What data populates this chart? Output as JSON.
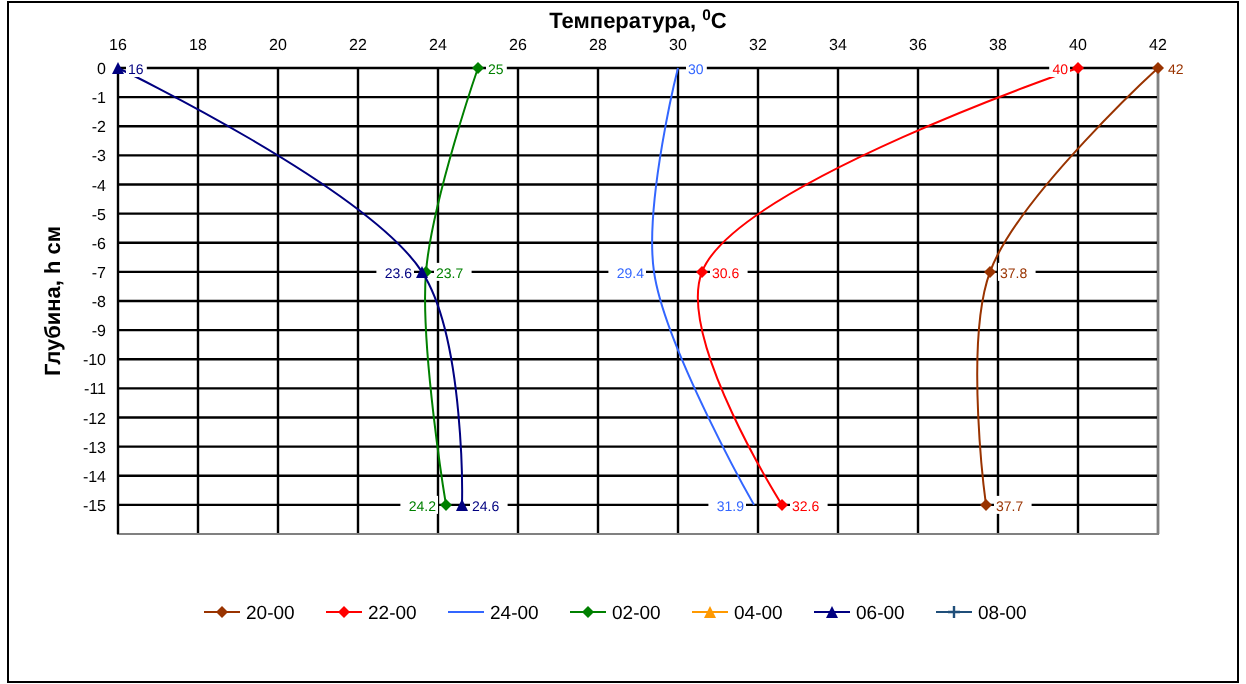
{
  "chart_data": {
    "type": "line",
    "orientation": "horizontal",
    "xlabel": "Температура, $^{0}$C",
    "ylabel": "Глубина, h см",
    "xlim": [
      16,
      42
    ],
    "xticks": [
      16,
      18,
      20,
      22,
      24,
      26,
      28,
      30,
      32,
      34,
      36,
      38,
      40,
      42
    ],
    "ylim": [
      -16,
      0
    ],
    "yticks": [
      0,
      -1,
      -2,
      -3,
      -4,
      -5,
      -6,
      -7,
      -8,
      -9,
      -10,
      -11,
      -12,
      -13,
      -14,
      -15
    ],
    "grid": true,
    "legend": "bottom",
    "data_labels": true,
    "series": [
      {
        "name": "20-00",
        "color": "#993300",
        "marker": "diamond",
        "x": [
          0,
          -7,
          -15
        ],
        "values": [
          42,
          37.8,
          37.7
        ]
      },
      {
        "name": "22-00",
        "color": "#ff0000",
        "marker": "diamond",
        "x": [
          0,
          -7,
          -15
        ],
        "values": [
          40,
          30.6,
          32.6
        ]
      },
      {
        "name": "24-00",
        "color": "#3366ff",
        "marker": "none",
        "x": [
          0,
          -7,
          -15
        ],
        "values": [
          30,
          29.4,
          31.9
        ]
      },
      {
        "name": "02-00",
        "color": "#008000",
        "marker": "diamond",
        "x": [
          0,
          -7,
          -15
        ],
        "values": [
          25,
          23.7,
          24.2
        ]
      },
      {
        "name": "04-00",
        "color": "#ff9900",
        "marker": "triangle",
        "x": [
          null,
          null,
          null
        ],
        "values": [
          null,
          null,
          null
        ]
      },
      {
        "name": "06-00",
        "color": "#000080",
        "marker": "triangle",
        "x": [
          0,
          -7,
          -15
        ],
        "values": [
          16,
          23.6,
          24.6
        ]
      },
      {
        "name": "08-00",
        "color": "#1f4e79",
        "marker": "cross",
        "x": [
          null,
          null,
          null
        ],
        "values": [
          null,
          null,
          null
        ]
      }
    ]
  }
}
